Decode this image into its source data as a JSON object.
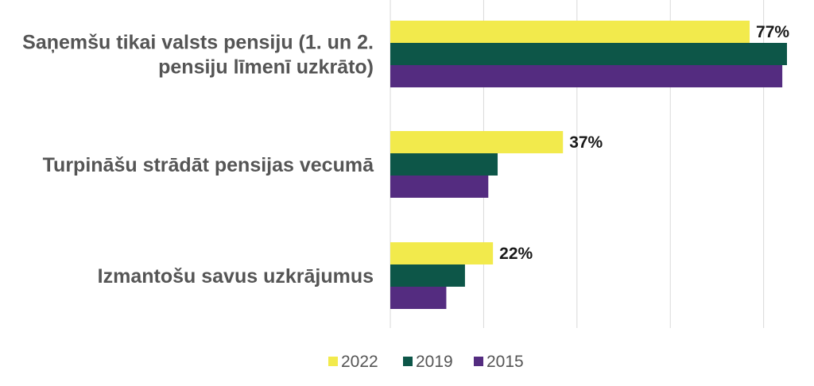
{
  "chart_data": {
    "type": "bar",
    "orientation": "horizontal",
    "categories": [
      [
        "Saņemšu tikai valsts pensiju (1. un 2.",
        "pensiju līmenī uzkrāto)"
      ],
      [
        "Turpināšu strādāt pensijas vecumā"
      ],
      [
        "Izmantošu savus uzkrājumus"
      ]
    ],
    "series": [
      {
        "name": "2022",
        "color": "#f2ea4c",
        "values": [
          77,
          37,
          22
        ],
        "labels": [
          "77%",
          "37%",
          "22%"
        ]
      },
      {
        "name": "2019",
        "color": "#0d5648",
        "values": [
          85,
          23,
          16
        ],
        "labels": [
          "",
          "",
          ""
        ]
      },
      {
        "name": "2015",
        "color": "#542c80",
        "values": [
          84,
          21,
          12
        ],
        "labels": [
          "",
          "",
          ""
        ]
      }
    ],
    "xlim": [
      0,
      90
    ],
    "gridline_step": 20,
    "grid": true,
    "legend_position": "bottom",
    "title": "",
    "xlabel": "",
    "ylabel": ""
  }
}
